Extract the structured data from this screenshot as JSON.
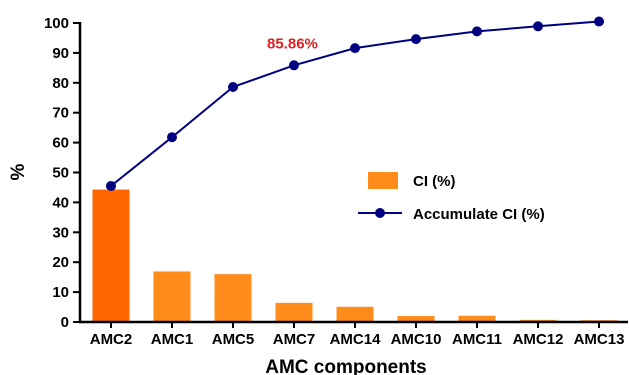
{
  "chart_data": {
    "type": "bar",
    "categories": [
      "AMC2",
      "AMC1",
      "AMC5",
      "AMC7",
      "AMC14",
      "AMC10",
      "AMC11",
      "AMC12",
      "AMC13"
    ],
    "series": [
      {
        "name": "CI (%)",
        "type": "bar",
        "values": [
          44.3,
          16.9,
          16.0,
          6.4,
          5.1,
          2.0,
          2.1,
          0.7,
          0.6
        ],
        "colors": [
          "#ff6600",
          "#ff8c1a",
          "#ff8c1a",
          "#ff8c1a",
          "#ff8c1a",
          "#ff8c1a",
          "#ff8c1a",
          "#ff8c1a",
          "#ff8c1a"
        ]
      },
      {
        "name": "Accumulate CI (%)",
        "type": "line",
        "values": [
          45.5,
          61.8,
          78.6,
          85.86,
          91.6,
          94.6,
          97.2,
          98.9,
          100.5
        ],
        "color": "#000080"
      }
    ],
    "xlabel": "AMC components",
    "ylabel": "%",
    "ylim": [
      0,
      100
    ],
    "yticks": [
      0,
      10,
      20,
      30,
      40,
      50,
      60,
      70,
      80,
      90,
      100
    ],
    "legend_position": "right-middle",
    "grid": false,
    "annotation": {
      "text": "85.86%",
      "category": "AMC7",
      "color": "#e02020"
    }
  }
}
